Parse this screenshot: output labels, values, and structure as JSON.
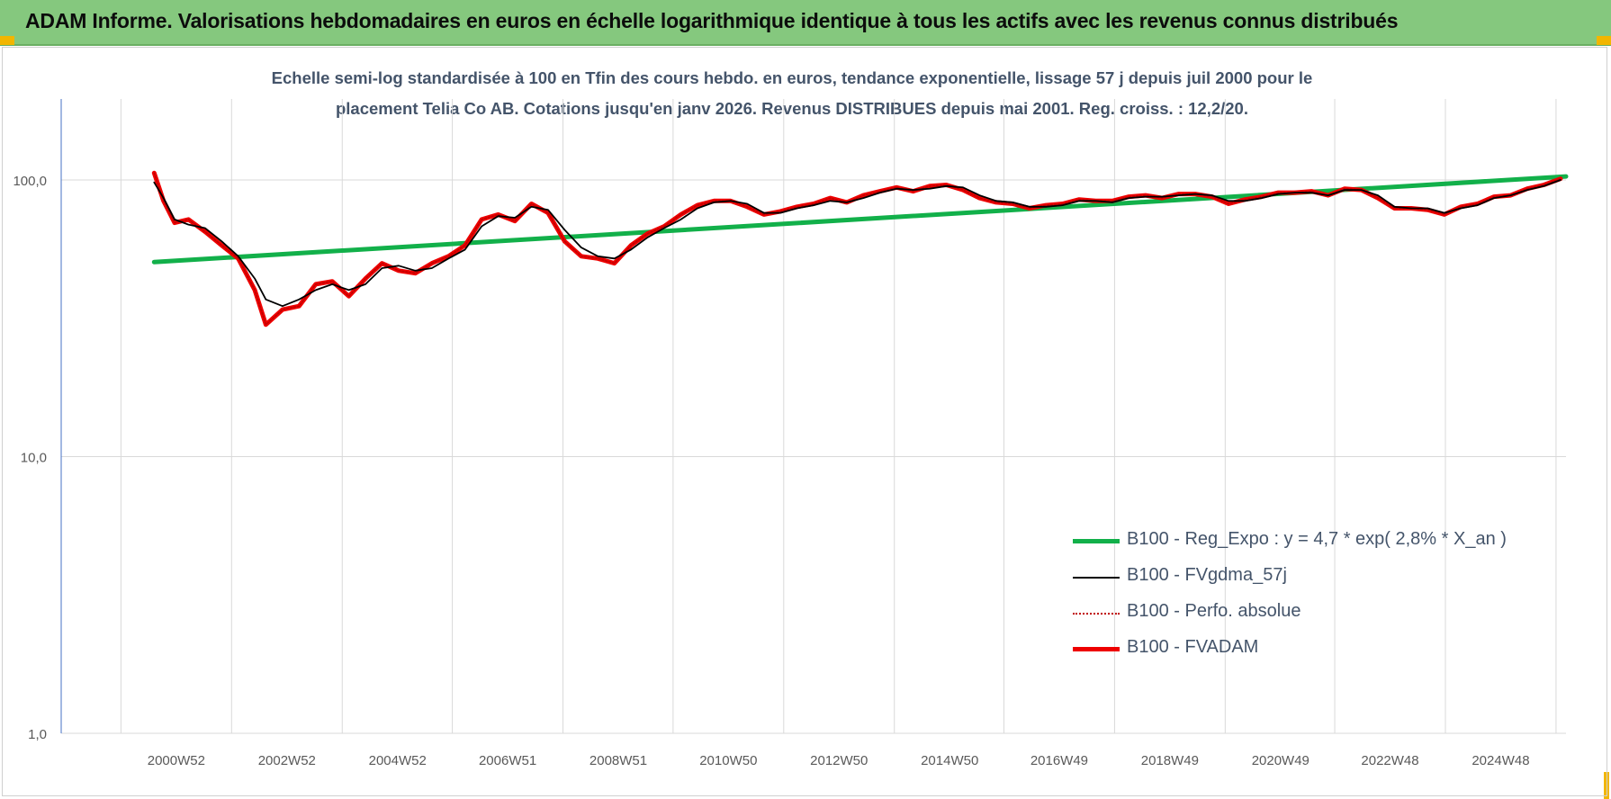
{
  "header": {
    "title": "ADAM Informe. Valorisations hebdomadaires en euros en échelle logarithmique identique à tous les actifs avec les revenus connus distribués"
  },
  "colors": {
    "header_bg": "#85c87e",
    "reg_expo": "#12b04a",
    "fvgdma": "#000000",
    "perfo": "#c00000",
    "fvadam": "#ee0000",
    "axis_text": "#595959",
    "subtitle_text": "#44546a"
  },
  "chart_data": {
    "type": "line",
    "scale": "log",
    "title_lines": [
      "Echelle semi-log standardisée à 100 en Tfin des cours hebdo. en euros, tendance exponentielle, lissage 57 j depuis juil 2000 pour le",
      "placement Telia Co AB. Cotations jusqu'en janv 2026. Revenus DISTRIBUES depuis mai 2001. Reg. croiss. : 12,2/20."
    ],
    "ylim": [
      1,
      100
    ],
    "y_ticks": [
      {
        "value": 1,
        "label": "1,0"
      },
      {
        "value": 10,
        "label": "10,0"
      },
      {
        "value": 100,
        "label": "100,0"
      }
    ],
    "xlim": [
      1998.9,
      2026.1
    ],
    "x_ticks": [
      {
        "value": 2000.98,
        "label": "2000W52"
      },
      {
        "value": 2002.98,
        "label": "2002W52"
      },
      {
        "value": 2004.98,
        "label": "2004W52"
      },
      {
        "value": 2006.97,
        "label": "2006W51"
      },
      {
        "value": 2008.97,
        "label": "2008W51"
      },
      {
        "value": 2010.96,
        "label": "2010W50"
      },
      {
        "value": 2012.96,
        "label": "2012W50"
      },
      {
        "value": 2014.96,
        "label": "2014W50"
      },
      {
        "value": 2016.94,
        "label": "2016W49"
      },
      {
        "value": 2018.94,
        "label": "2018W49"
      },
      {
        "value": 2020.94,
        "label": "2020W49"
      },
      {
        "value": 2022.92,
        "label": "2022W48"
      },
      {
        "value": 2024.92,
        "label": "2024W48"
      }
    ],
    "grid": true,
    "legend_position": "bottom-right",
    "series": [
      {
        "name": "B100 - Reg_Expo : y = 4,7 * exp( 2,8% *  X_an )",
        "color": "#12b04a",
        "style": "thick",
        "x": [
          2000.58,
          2026.1
        ],
        "values": [
          50.5,
          103
        ]
      },
      {
        "name": "B100 - FVgdma_57j",
        "color": "#000000",
        "style": "thin",
        "x": [
          2000.58,
          2000.75,
          2000.95,
          2001.2,
          2001.5,
          2001.8,
          2002.1,
          2002.4,
          2002.6,
          2002.9,
          2003.2,
          2003.5,
          2003.8,
          2004.1,
          2004.4,
          2004.7,
          2005.0,
          2005.3,
          2005.6,
          2005.9,
          2006.2,
          2006.5,
          2006.8,
          2007.1,
          2007.4,
          2007.7,
          2008.0,
          2008.3,
          2008.6,
          2008.9,
          2009.2,
          2009.5,
          2009.8,
          2010.1,
          2010.4,
          2010.7,
          2011.0,
          2011.3,
          2011.6,
          2011.9,
          2012.2,
          2012.5,
          2012.8,
          2013.1,
          2013.4,
          2013.7,
          2014.0,
          2014.3,
          2014.6,
          2014.9,
          2015.2,
          2015.5,
          2015.8,
          2016.1,
          2016.4,
          2016.7,
          2017.0,
          2017.3,
          2017.6,
          2017.9,
          2018.2,
          2018.5,
          2018.8,
          2019.1,
          2019.4,
          2019.7,
          2020.0,
          2020.3,
          2020.6,
          2020.9,
          2021.2,
          2021.5,
          2021.8,
          2022.1,
          2022.4,
          2022.7,
          2023.0,
          2023.3,
          2023.6,
          2023.9,
          2024.2,
          2024.5,
          2024.8,
          2025.1,
          2025.4,
          2025.7,
          2026.0
        ],
        "values": [
          98,
          86,
          72,
          69,
          67,
          60,
          53,
          44,
          37,
          35,
          37,
          40,
          42,
          40,
          42,
          48,
          49,
          47,
          48,
          52,
          56,
          68,
          74,
          73,
          80,
          78,
          66,
          57,
          53,
          52,
          56,
          62,
          67,
          72,
          79,
          83,
          84,
          82,
          76,
          76,
          79,
          81,
          84,
          83,
          86,
          90,
          93,
          92,
          93,
          95,
          94,
          88,
          84,
          83,
          80,
          80,
          81,
          84,
          84,
          83,
          86,
          87,
          87,
          88,
          89,
          88,
          84,
          84,
          86,
          89,
          90,
          90,
          88,
          92,
          92,
          88,
          80,
          79,
          79,
          76,
          79,
          81,
          86,
          88,
          92,
          95,
          100
        ]
      },
      {
        "name": "B100 - Perfo. absolue",
        "color": "#c00000",
        "style": "dotted",
        "x": [
          2000.58,
          2000.75,
          2000.95,
          2001.2,
          2001.5,
          2001.8,
          2002.1,
          2002.4,
          2002.6,
          2002.9,
          2003.2,
          2003.5,
          2003.8,
          2004.1,
          2004.4,
          2004.7,
          2005.0,
          2005.3,
          2005.6,
          2005.9,
          2006.2,
          2006.5,
          2006.8,
          2007.1,
          2007.4,
          2007.7,
          2008.0,
          2008.3,
          2008.6,
          2008.9,
          2009.2,
          2009.5,
          2009.8,
          2010.1,
          2010.4,
          2010.7,
          2011.0,
          2011.3,
          2011.6,
          2011.9,
          2012.2,
          2012.5,
          2012.8,
          2013.1,
          2013.4,
          2013.7,
          2014.0,
          2014.3,
          2014.6,
          2014.9,
          2015.2,
          2015.5,
          2015.8,
          2016.1,
          2016.4,
          2016.7,
          2017.0,
          2017.3,
          2017.6,
          2017.9,
          2018.2,
          2018.5,
          2018.8,
          2019.1,
          2019.4,
          2019.7,
          2020.0,
          2020.3,
          2020.6,
          2020.9,
          2021.2,
          2021.5,
          2021.8,
          2022.1,
          2022.4,
          2022.7,
          2023.0,
          2023.3,
          2023.6,
          2023.9,
          2024.2,
          2024.5,
          2024.8,
          2025.1,
          2025.4,
          2025.7,
          2026.0
        ],
        "values": [
          106,
          84,
          70,
          72,
          65,
          58,
          52,
          40,
          30,
          34,
          35,
          42,
          43,
          38,
          44,
          50,
          47,
          46,
          50,
          53,
          58,
          72,
          75,
          71,
          82,
          76,
          60,
          53,
          52,
          50,
          58,
          64,
          68,
          75,
          81,
          84,
          84,
          80,
          75,
          77,
          80,
          82,
          86,
          83,
          88,
          91,
          94,
          91,
          95,
          96,
          92,
          86,
          83,
          82,
          79,
          81,
          82,
          85,
          84,
          84,
          87,
          88,
          86,
          89,
          89,
          87,
          82,
          85,
          87,
          90,
          90,
          91,
          88,
          93,
          92,
          86,
          79,
          79,
          78,
          75,
          80,
          82,
          87,
          88,
          93,
          96,
          101
        ]
      },
      {
        "name": "B100 - FVADAM",
        "color": "#ee0000",
        "style": "thick",
        "x": [
          2000.58,
          2000.75,
          2000.95,
          2001.2,
          2001.5,
          2001.8,
          2002.1,
          2002.4,
          2002.6,
          2002.9,
          2003.2,
          2003.5,
          2003.8,
          2004.1,
          2004.4,
          2004.7,
          2005.0,
          2005.3,
          2005.6,
          2005.9,
          2006.2,
          2006.5,
          2006.8,
          2007.1,
          2007.4,
          2007.7,
          2008.0,
          2008.3,
          2008.6,
          2008.9,
          2009.2,
          2009.5,
          2009.8,
          2010.1,
          2010.4,
          2010.7,
          2011.0,
          2011.3,
          2011.6,
          2011.9,
          2012.2,
          2012.5,
          2012.8,
          2013.1,
          2013.4,
          2013.7,
          2014.0,
          2014.3,
          2014.6,
          2014.9,
          2015.2,
          2015.5,
          2015.8,
          2016.1,
          2016.4,
          2016.7,
          2017.0,
          2017.3,
          2017.6,
          2017.9,
          2018.2,
          2018.5,
          2018.8,
          2019.1,
          2019.4,
          2019.7,
          2020.0,
          2020.3,
          2020.6,
          2020.9,
          2021.2,
          2021.5,
          2021.8,
          2022.1,
          2022.4,
          2022.7,
          2023.0,
          2023.3,
          2023.6,
          2023.9,
          2024.2,
          2024.5,
          2024.8,
          2025.1,
          2025.4,
          2025.7,
          2026.0
        ],
        "values": [
          106,
          84,
          70,
          72,
          65,
          58,
          52,
          40,
          30,
          34,
          35,
          42,
          43,
          38,
          44,
          50,
          47,
          46,
          50,
          53,
          58,
          72,
          75,
          71,
          82,
          76,
          60,
          53,
          52,
          50,
          58,
          64,
          68,
          75,
          81,
          84,
          84,
          80,
          75,
          77,
          80,
          82,
          86,
          83,
          88,
          91,
          94,
          91,
          95,
          96,
          92,
          86,
          83,
          82,
          79,
          81,
          82,
          85,
          84,
          84,
          87,
          88,
          86,
          89,
          89,
          87,
          82,
          85,
          87,
          90,
          90,
          91,
          88,
          93,
          92,
          86,
          79,
          79,
          78,
          75,
          80,
          82,
          87,
          88,
          93,
          96,
          101
        ]
      }
    ]
  }
}
